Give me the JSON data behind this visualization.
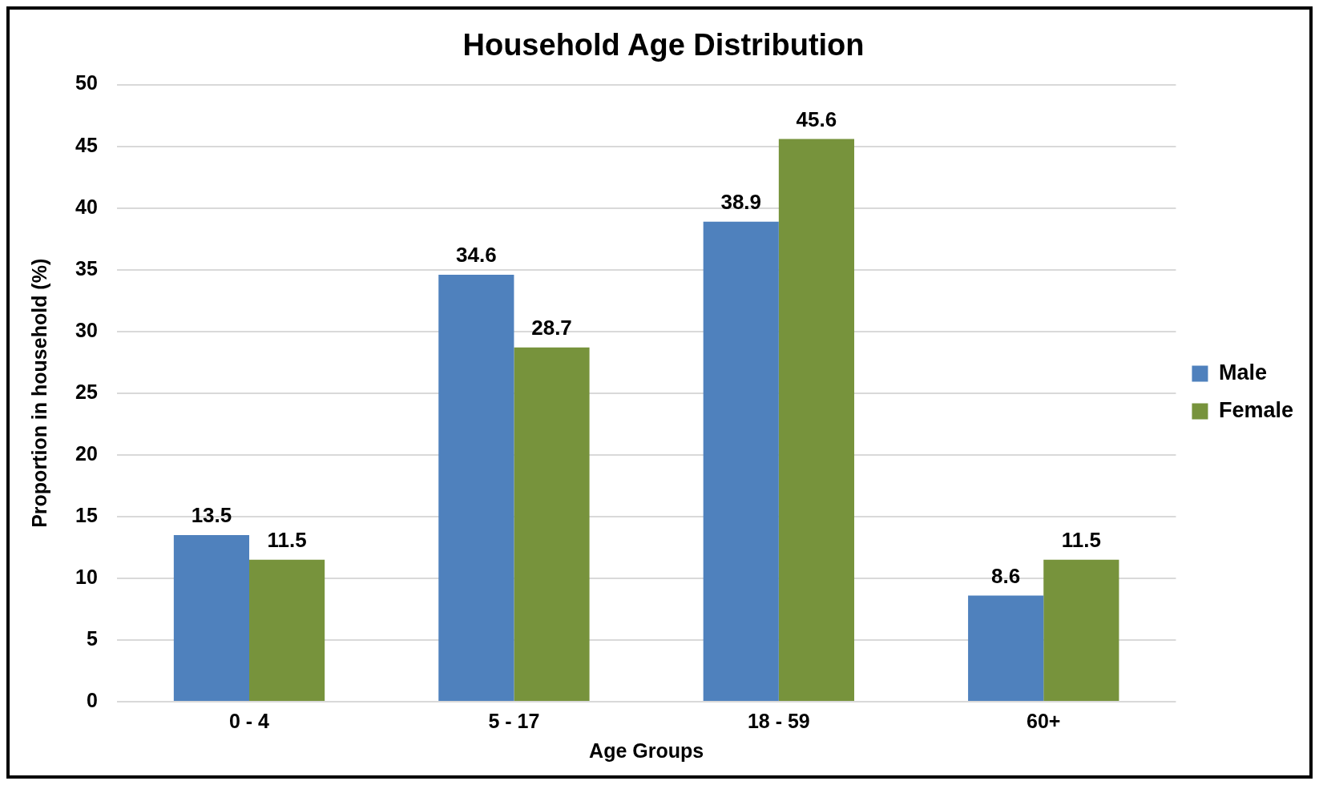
{
  "chart_data": {
    "type": "bar",
    "title": "Household Age Distribution",
    "xlabel": "Age Groups",
    "ylabel": "Proportion in household (%)",
    "categories": [
      "0 - 4",
      "5 - 17",
      "18 - 59",
      "60+"
    ],
    "series": [
      {
        "name": "Male",
        "color": "#4f81bd",
        "values": [
          13.5,
          34.6,
          38.9,
          8.6
        ]
      },
      {
        "name": "Female",
        "color": "#77933c",
        "values": [
          11.5,
          28.7,
          45.6,
          11.5
        ]
      }
    ],
    "ylim": [
      0,
      50
    ],
    "yticks": [
      0,
      5,
      10,
      15,
      20,
      25,
      30,
      35,
      40,
      45,
      50
    ],
    "grid": "y",
    "legend": "right",
    "data_labels": true
  }
}
